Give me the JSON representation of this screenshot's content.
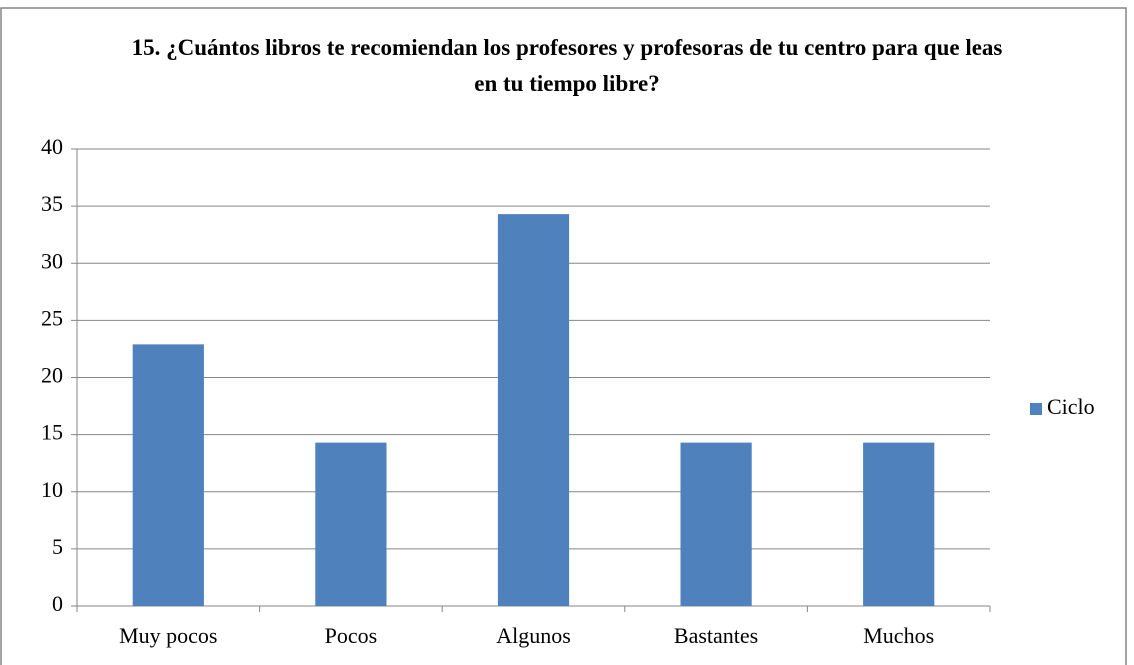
{
  "chart_data": {
    "type": "bar",
    "title": "15. ¿Cuántos libros te recomiendan los profesores y profesoras de tu centro para que leas en tu tiempo libre?",
    "categories": [
      "Muy pocos",
      "Pocos",
      "Algunos",
      "Bastantes",
      "Muchos"
    ],
    "series": [
      {
        "name": "Ciclo",
        "color": "#4f81bd",
        "values": [
          22.9,
          14.3,
          34.3,
          14.3,
          14.3
        ]
      }
    ],
    "ylim": [
      0,
      40
    ],
    "yticks": [
      0,
      5,
      10,
      15,
      20,
      25,
      30,
      35,
      40
    ],
    "grid": true,
    "legend": "right"
  }
}
